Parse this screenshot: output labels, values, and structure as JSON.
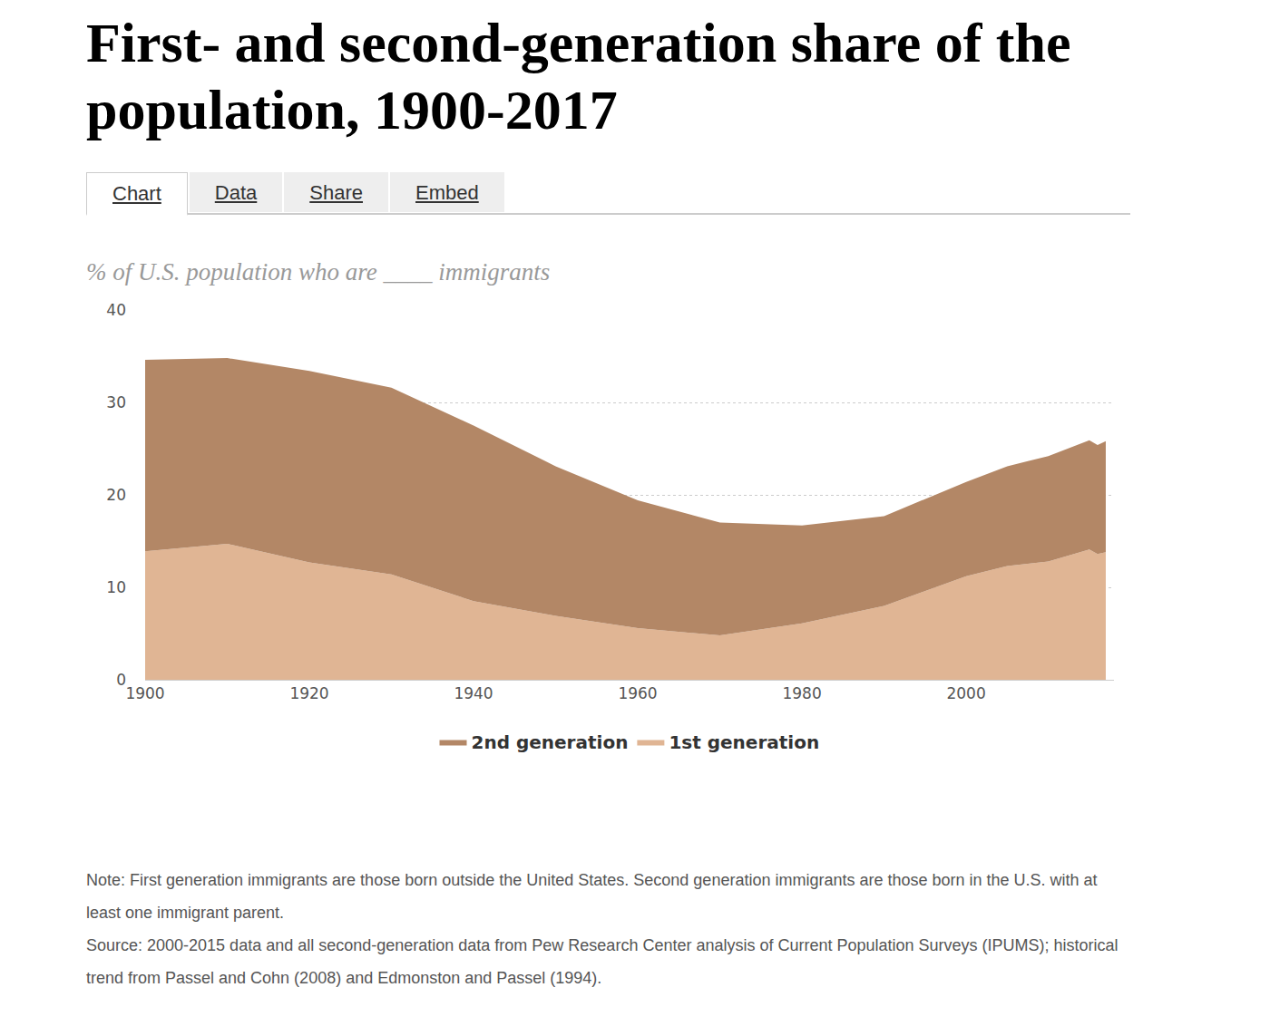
{
  "tabs": [
    "Chart",
    "Data",
    "Share",
    "Embed"
  ],
  "note": "Note: First generation immigrants are those born outside the United States. Second generation immigrants are those born in the U.S. with at least one immigrant parent.",
  "source": "Source: 2000-2015 data and all second-generation data from Pew Research Center analysis of Current Population Surveys (IPUMS); historical trend from Passel and Cohn (2008) and Edmonston and Passel (1994).",
  "chart_data": {
    "type": "area",
    "title": "First- and second-generation share of the population, 1900-2017",
    "subtitle": "% of U.S. population who are ____ immigrants",
    "x": [
      1900,
      1910,
      1920,
      1930,
      1940,
      1950,
      1960,
      1970,
      1980,
      1990,
      2000,
      2005,
      2010,
      2015,
      2016,
      2017
    ],
    "series": [
      {
        "name": "1st generation",
        "color": "#e0b594",
        "values": [
          13.9,
          14.7,
          12.7,
          11.4,
          8.5,
          6.9,
          5.6,
          4.8,
          6.1,
          8.0,
          11.2,
          12.3,
          12.8,
          14.1,
          13.6,
          13.8
        ]
      },
      {
        "name": "2nd generation",
        "color": "#b38766",
        "values": [
          20.7,
          20.1,
          20.7,
          20.2,
          19.0,
          16.2,
          13.8,
          12.2,
          10.6,
          9.7,
          10.2,
          10.8,
          11.4,
          11.8,
          11.8,
          12.0
        ]
      }
    ],
    "xlim": [
      1900,
      2018
    ],
    "xticks": [
      1900,
      1920,
      1940,
      1960,
      1980,
      2000
    ],
    "ylim": [
      0,
      40
    ],
    "yticks": [
      0,
      10,
      20,
      30,
      40
    ],
    "grid": true,
    "stacked": true,
    "legend": "bottom"
  }
}
